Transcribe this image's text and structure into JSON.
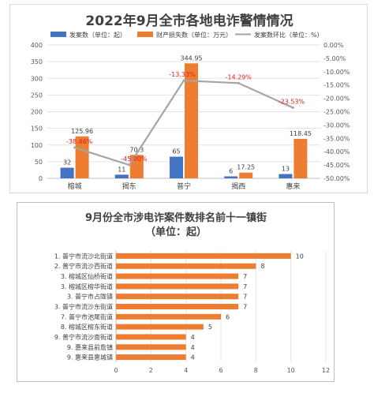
{
  "chart_data": [
    {
      "type": "bar",
      "title": "2022年9月全市各地电诈警情情况",
      "legend_position": "top",
      "categories": [
        "榕城",
        "揭东",
        "普宁",
        "揭西",
        "惠来"
      ],
      "y_left": {
        "ylim": [
          0,
          400
        ],
        "ticks": [
          "0",
          "50",
          "100",
          "150",
          "200",
          "250",
          "300",
          "350",
          "400"
        ]
      },
      "y_right": {
        "ylim": [
          -50,
          0
        ],
        "ticks": [
          "0.00%",
          "-5.00%",
          "-10.00%",
          "-15.00%",
          "-20.00%",
          "-25.00%",
          "-30.00%",
          "-35.00%",
          "-40.00%",
          "-45.00%",
          "-50.00%"
        ]
      },
      "series": [
        {
          "name": "发案数（单位：起）",
          "type": "bar",
          "color": "#4472C4",
          "values": [
            32,
            11,
            65,
            6,
            13
          ],
          "labels": [
            "32",
            "11",
            "65",
            "6",
            "13"
          ]
        },
        {
          "name": "财产损失数（单位：万元）",
          "type": "bar",
          "color": "#ED7D31",
          "values": [
            125.96,
            70.3,
            344.95,
            17.25,
            118.45
          ],
          "labels": [
            "125.96",
            "70.3",
            "344.95",
            "17.25",
            "118.45"
          ]
        },
        {
          "name": "发案数环比（单位：%）",
          "type": "line",
          "axis": "right",
          "color": "#A5A5A5",
          "values": [
            -38.46,
            -45.0,
            -13.33,
            -14.29,
            -23.53
          ],
          "labels": [
            "-38.46%",
            "-45.00%",
            "-13.33%",
            "-14.29%",
            "-23.53%"
          ],
          "label_color": "#E02020"
        }
      ]
    },
    {
      "type": "bar",
      "orientation": "horizontal",
      "title": "9月份全市涉电诈案件数排名前十一镇街",
      "subtitle": "（单位：起）",
      "color": "#ED7D31",
      "categories": [
        "1. 普宁市流沙北街道",
        "2. 普宁市流沙西街道",
        "3. 榕城区仙桥街道",
        "3. 榕城区榕华街道",
        "3. 普宁市占陇镇",
        "3. 普宁市流沙东街道",
        "7. 普宁市池尾街道",
        "8. 榕城区榕东街道",
        "9. 普宁市流沙南街道",
        "9. 惠来县前詹镇",
        "9. 惠来县惠城镇"
      ],
      "values": [
        10,
        8,
        7,
        7,
        7,
        7,
        6,
        5,
        4,
        4,
        4
      ],
      "labels": [
        "10",
        "8",
        "7",
        "7",
        "7",
        "7",
        "6",
        "5",
        "4",
        "4",
        "4"
      ],
      "xlim": [
        0,
        12
      ],
      "xticks": [
        "0",
        "2",
        "4",
        "6",
        "8",
        "10",
        "12"
      ]
    }
  ]
}
